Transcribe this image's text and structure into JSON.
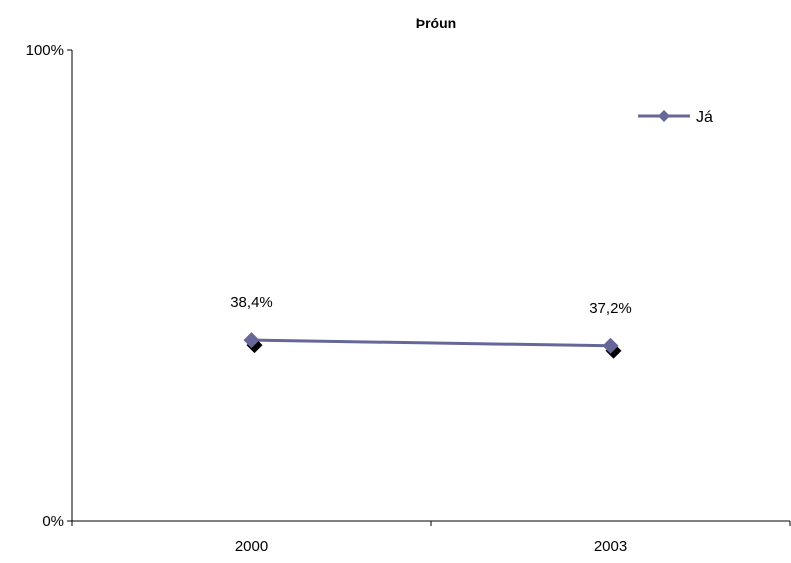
{
  "chart_data": {
    "type": "line",
    "title": "Þróun",
    "xlabel": "",
    "ylabel": "",
    "categories": [
      "2000",
      "2003"
    ],
    "series": [
      {
        "name": "Já",
        "values": [
          38.4,
          37.2
        ],
        "labels": [
          "38,4%",
          "37,2%"
        ],
        "color": "#666699"
      }
    ],
    "ylim": [
      0,
      100
    ],
    "y_ticks": [
      "0%",
      "100%"
    ],
    "grid": false,
    "legend": "top-right"
  }
}
